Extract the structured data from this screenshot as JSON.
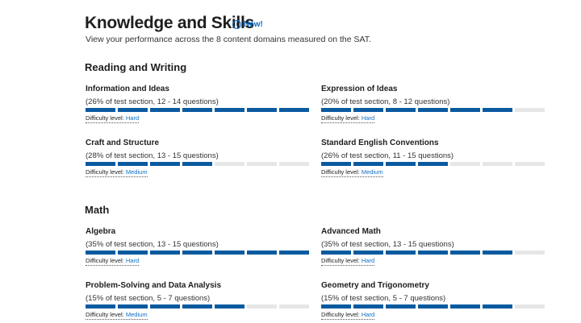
{
  "header": {
    "title": "Knowledge and Skills",
    "badge": "New!",
    "subtitle": "View your performance across the 8 content domains measured on the SAT."
  },
  "bar_segments": 7,
  "difficulty_label": "Difficulty level:",
  "sections": [
    {
      "title": "Reading and Writing",
      "domains": [
        {
          "name": "Information and Ideas",
          "detail": "(26% of test section, 12 - 14 questions)",
          "filled": 7,
          "difficulty": "Hard"
        },
        {
          "name": "Expression of Ideas",
          "detail": "(20% of test section, 8 - 12 questions)",
          "filled": 6,
          "difficulty": "Hard"
        },
        {
          "name": "Craft and Structure",
          "detail": "(28% of test section, 13 - 15 questions)",
          "filled": 4,
          "difficulty": "Medium"
        },
        {
          "name": "Standard English Conventions",
          "detail": "(26% of test section, 11 - 15 questions)",
          "filled": 4,
          "difficulty": "Medium"
        }
      ]
    },
    {
      "title": "Math",
      "domains": [
        {
          "name": "Algebra",
          "detail": "(35% of test section, 13 - 15 questions)",
          "filled": 7,
          "difficulty": "Hard"
        },
        {
          "name": "Advanced Math",
          "detail": "(35% of test section, 13 - 15 questions)",
          "filled": 6,
          "difficulty": "Hard"
        },
        {
          "name": "Problem-Solving and Data Analysis",
          "detail": "(15% of test section, 5 - 7 questions)",
          "filled": 5,
          "difficulty": "Medium"
        },
        {
          "name": "Geometry and Trigonometry",
          "detail": "(15% of test section, 5 - 7 questions)",
          "filled": 6,
          "difficulty": "Hard"
        }
      ]
    }
  ]
}
